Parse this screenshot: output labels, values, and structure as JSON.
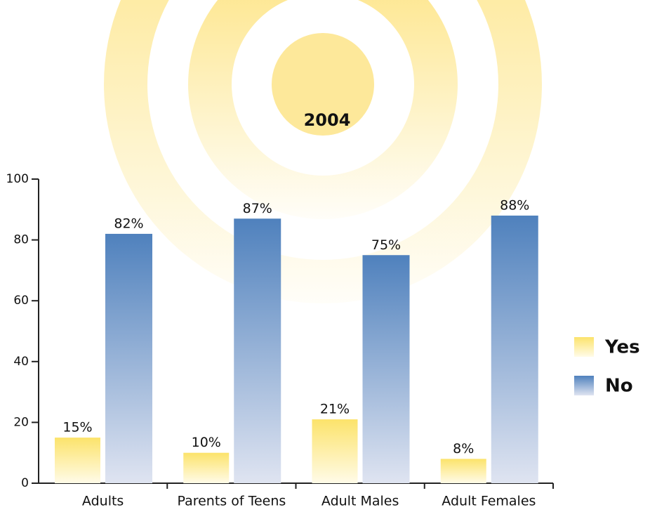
{
  "chart_data": {
    "type": "bar",
    "title": "2004",
    "categories": [
      "Adults",
      "Parents of Teens",
      "Adult Males",
      "Adult Females"
    ],
    "series": [
      {
        "name": "Yes",
        "color": "#fce36b",
        "values": [
          15,
          10,
          21,
          8
        ],
        "value_labels": [
          "15%",
          "10%",
          "21%",
          "8%"
        ]
      },
      {
        "name": "No",
        "color": "#4f81bd",
        "values": [
          82,
          87,
          75,
          88
        ],
        "value_labels": [
          "82%",
          "87%",
          "75%",
          "88%"
        ]
      }
    ],
    "ylim": [
      0,
      100
    ],
    "yticks": [
      0,
      20,
      40,
      60,
      80,
      100
    ],
    "legend": "right"
  }
}
